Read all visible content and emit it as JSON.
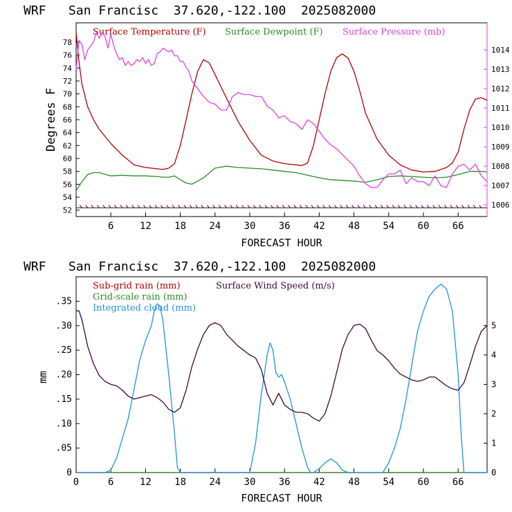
{
  "colors": {
    "temperature": "#b00000",
    "dewpoint": "#2a8a2a",
    "pressure": "#e040e0",
    "subgrid_rain": "#b00000",
    "grid_rain": "#2a8a2a",
    "cloud": "#2090e0",
    "wind": "#3a0838",
    "axis": "#000000"
  },
  "chart_data": [
    {
      "type": "line",
      "title": "WRF   San Francisc  37.620,-122.100  2025082000",
      "xlabel": "FORECAST HOUR",
      "ylabel": "Degrees F",
      "xlim": [
        0,
        71
      ],
      "ylim": [
        51,
        81
      ],
      "y2lim": [
        1005.4,
        1015.4
      ],
      "x_ticks": [
        6,
        12,
        18,
        24,
        30,
        36,
        42,
        48,
        54,
        60,
        66
      ],
      "x_tick_labels": [
        "6",
        "12",
        "18",
        "24",
        "30",
        "36",
        "42",
        "48",
        "54",
        "60",
        "66"
      ],
      "y_ticks": [
        52,
        54,
        56,
        58,
        60,
        62,
        64,
        66,
        68,
        70,
        72,
        74,
        76,
        78
      ],
      "y_tick_labels": [
        "52",
        "54",
        "56",
        "58",
        "60",
        "62",
        "64",
        "66",
        "68",
        "70",
        "72",
        "74",
        "76",
        "78"
      ],
      "y2_ticks": [
        1006,
        1007,
        1008,
        1009,
        1010,
        1011,
        1012,
        1013,
        1014
      ],
      "y2_tick_labels": [
        "1006",
        "1007",
        "1008",
        "1009",
        "1010",
        "1011",
        "1012",
        "1013",
        "1014"
      ],
      "legend": [
        "Surface Temperature (F)",
        "Surface Dewpoint (F)",
        "Surface Pressure (mb)"
      ],
      "series": [
        {
          "name": "Surface Temperature (F)",
          "axis": "left",
          "x": [
            0,
            0.5,
            1,
            2,
            3,
            4,
            6,
            8,
            10,
            12,
            14,
            15,
            16,
            17,
            18,
            19,
            20,
            21,
            22,
            23,
            24,
            26,
            28,
            30,
            32,
            34,
            36,
            38,
            39,
            40,
            41,
            42,
            43,
            44,
            45,
            46,
            47,
            48,
            49,
            50,
            52,
            54,
            56,
            58,
            60,
            62,
            64,
            65,
            66,
            67,
            68,
            69,
            70,
            71
          ],
          "values": [
            79.5,
            75,
            71.5,
            68,
            66,
            64.5,
            62.3,
            60.5,
            59,
            58.6,
            58.4,
            58.3,
            58.5,
            59.2,
            62,
            66,
            70,
            73.5,
            75.3,
            74.8,
            73,
            69.3,
            65.7,
            62.8,
            60.5,
            59.6,
            59.2,
            59,
            58.9,
            59.3,
            62,
            66,
            70,
            73.5,
            75.6,
            76.2,
            75.5,
            73.5,
            70.5,
            67,
            63,
            60.5,
            59,
            58.2,
            57.9,
            58,
            58.6,
            59.3,
            61,
            64.5,
            67.5,
            69.2,
            69.4,
            69
          ],
          "color": "#b00000"
        },
        {
          "name": "Surface Dewpoint (F)",
          "axis": "left",
          "x": [
            0,
            1,
            2,
            3,
            4,
            6,
            8,
            10,
            12,
            14,
            15,
            16,
            17,
            18,
            19,
            20,
            22,
            24,
            26,
            28,
            30,
            32,
            34,
            36,
            38,
            40,
            42,
            44,
            46,
            48,
            50,
            52,
            54,
            56,
            58,
            60,
            62,
            64,
            66,
            68,
            70,
            71
          ],
          "values": [
            55,
            56.4,
            57.5,
            57.8,
            57.8,
            57.3,
            57.4,
            57.3,
            57.3,
            57.2,
            57.1,
            57.1,
            57.3,
            56.7,
            56.2,
            56,
            57,
            58.5,
            58.8,
            58.6,
            58.5,
            58.4,
            58.2,
            58,
            57.8,
            57.4,
            57,
            56.7,
            56.6,
            56.5,
            56.3,
            56.7,
            57.2,
            57.3,
            57.2,
            57.1,
            57,
            57.1,
            57.5,
            58,
            58,
            57.9
          ],
          "color": "#2a8a2a"
        },
        {
          "name": "Surface Pressure (mb)",
          "axis": "right",
          "x": [
            0,
            0.5,
            1,
            1.5,
            2,
            3,
            3.5,
            4,
            4.5,
            5,
            5.5,
            6,
            6.5,
            7,
            7.5,
            8,
            8.5,
            9,
            9.5,
            10,
            10.5,
            11,
            11.5,
            12,
            12.5,
            13,
            13.5,
            14,
            14.5,
            15,
            16,
            16.5,
            17,
            17.5,
            18,
            18.5,
            19,
            19.5,
            20,
            21,
            22,
            23,
            24,
            25,
            26,
            27,
            28,
            29,
            30,
            31,
            32,
            33,
            34,
            35,
            36,
            37,
            38,
            39,
            40,
            41,
            42,
            43,
            44,
            45,
            46,
            47,
            48,
            49,
            50,
            51,
            52,
            53,
            54,
            55,
            56,
            57,
            58,
            59,
            60,
            61,
            62,
            63,
            64,
            65,
            66,
            67,
            68,
            69,
            70,
            71
          ],
          "values": [
            1013,
            1014.5,
            1014.3,
            1013.5,
            1014,
            1014.4,
            1014.9,
            1014.6,
            1014.9,
            1014.7,
            1014.1,
            1014.8,
            1014.2,
            1013.8,
            1013.5,
            1013.6,
            1013.2,
            1013.4,
            1013.2,
            1013.3,
            1013.5,
            1013.4,
            1013.6,
            1013.3,
            1013.5,
            1013.2,
            1013.3,
            1013.8,
            1013.9,
            1014.1,
            1013.9,
            1014,
            1013.7,
            1013.7,
            1013.4,
            1013.4,
            1013.1,
            1012.9,
            1012.4,
            1012,
            1011.6,
            1011.3,
            1011.2,
            1010.9,
            1010.9,
            1011.6,
            1011.8,
            1011.7,
            1011.7,
            1011.6,
            1011.6,
            1011.1,
            1010.9,
            1010.5,
            1010.6,
            1010.3,
            1010.2,
            1009.9,
            1010.4,
            1010.2,
            1009.8,
            1009.4,
            1009.1,
            1008.9,
            1008.6,
            1008.3,
            1008,
            1007.5,
            1007.1,
            1006.9,
            1006.9,
            1007.3,
            1007.6,
            1007.6,
            1007.8,
            1007.1,
            1007.4,
            1007.2,
            1007.2,
            1007,
            1007.5,
            1007,
            1006.9,
            1007.6,
            1008,
            1008.1,
            1007.8,
            1008.1,
            1007.5,
            1007.2
          ],
          "color": "#e040e0"
        }
      ]
    },
    {
      "type": "line",
      "title": "WRF   San Francisc  37.620,-122.100  2025082000",
      "xlabel": "FORECAST HOUR",
      "ylabel": "mm",
      "xlim": [
        0,
        71
      ],
      "ylim": [
        0,
        0.4
      ],
      "y2lim": [
        0,
        6.66
      ],
      "x_ticks": [
        0,
        6,
        12,
        18,
        24,
        30,
        36,
        42,
        48,
        54,
        60,
        66
      ],
      "x_tick_labels": [
        "0",
        "6",
        "12",
        "18",
        "24",
        "30",
        "36",
        "42",
        "48",
        "54",
        "60",
        "66"
      ],
      "y_ticks": [
        0,
        0.05,
        0.1,
        0.15,
        0.2,
        0.25,
        0.3,
        0.35
      ],
      "y_tick_labels": [
        "0",
        ".05",
        ".10",
        ".15",
        ".20",
        ".25",
        ".30",
        ".35"
      ],
      "y2_ticks": [
        0,
        1,
        2,
        3,
        4,
        5
      ],
      "y2_tick_labels": [
        "0",
        "1",
        "2",
        "3",
        "4",
        "5"
      ],
      "legend": [
        "Sub-grid rain (mm)",
        "Surface Wind Speed (m/s)",
        "Grid-scale rain (mm)",
        "Integrated cloud (mm)"
      ],
      "series": [
        {
          "name": "Sub-grid rain (mm)",
          "axis": "left",
          "x": [
            0,
            71
          ],
          "values": [
            0,
            0
          ],
          "color": "#b00000"
        },
        {
          "name": "Grid-scale rain (mm)",
          "axis": "left",
          "x": [
            0,
            71
          ],
          "values": [
            0,
            0
          ],
          "color": "#2a8a2a"
        },
        {
          "name": "Integrated cloud (mm)",
          "axis": "left",
          "x": [
            0,
            5,
            6,
            7,
            8,
            9,
            10,
            11,
            12,
            13,
            13.5,
            14,
            14.5,
            15,
            16,
            17,
            17.5,
            18,
            30,
            31,
            32,
            33,
            33.5,
            34,
            34.5,
            35,
            35.5,
            36,
            37,
            38,
            39,
            40,
            40.5,
            41,
            42,
            43,
            44,
            45,
            46,
            47,
            53,
            54,
            55,
            56,
            57,
            58,
            59,
            60,
            61,
            62,
            63,
            64,
            65,
            66,
            66.5,
            67,
            71
          ],
          "values": [
            0,
            0,
            0.005,
            0.03,
            0.07,
            0.11,
            0.17,
            0.23,
            0.27,
            0.3,
            0.33,
            0.345,
            0.34,
            0.31,
            0.2,
            0.08,
            0.01,
            0,
            0,
            0.06,
            0.16,
            0.24,
            0.265,
            0.25,
            0.205,
            0.195,
            0.2,
            0.185,
            0.15,
            0.1,
            0.05,
            0.01,
            0,
            0,
            0.008,
            0.02,
            0.028,
            0.02,
            0.005,
            0,
            0,
            0.02,
            0.05,
            0.09,
            0.15,
            0.22,
            0.29,
            0.33,
            0.36,
            0.375,
            0.385,
            0.375,
            0.33,
            0.2,
            0.08,
            0,
            0
          ],
          "color": "#2090e0"
        },
        {
          "name": "Surface Wind Speed (m/s)",
          "axis": "right",
          "x": [
            0,
            0.5,
            1,
            2,
            3,
            4,
            5,
            6,
            7,
            8,
            9,
            10,
            11,
            12,
            13,
            14,
            15,
            16,
            17,
            18,
            19,
            20,
            21,
            22,
            23,
            24,
            25,
            26,
            27,
            28,
            29,
            30,
            31,
            32,
            33,
            34,
            35,
            36,
            37,
            38,
            39,
            40,
            41,
            42,
            43,
            44,
            45,
            46,
            47,
            48,
            49,
            50,
            51,
            52,
            53,
            54,
            55,
            56,
            57,
            58,
            59,
            60,
            61,
            62,
            63,
            64,
            65,
            66,
            67,
            68,
            69,
            70,
            71
          ],
          "values": [
            5.5,
            5.5,
            5.2,
            4.3,
            3.7,
            3.3,
            3.1,
            3,
            2.95,
            2.8,
            2.6,
            2.5,
            2.55,
            2.6,
            2.65,
            2.55,
            2.4,
            2.15,
            2.05,
            2.2,
            2.8,
            3.6,
            4.2,
            4.7,
            5,
            5.1,
            5,
            4.7,
            4.5,
            4.3,
            4.15,
            4,
            3.9,
            3.5,
            2.7,
            2.3,
            2.7,
            2.3,
            2.15,
            2.05,
            2.05,
            2,
            1.85,
            1.75,
            2,
            2.6,
            3.4,
            4.2,
            4.7,
            5,
            5.05,
            4.9,
            4.5,
            4.15,
            4,
            3.8,
            3.55,
            3.35,
            3.25,
            3.15,
            3.1,
            3.15,
            3.25,
            3.25,
            3.1,
            2.95,
            2.85,
            2.8,
            3.05,
            3.65,
            4.3,
            4.8,
            5
          ]
        }
      ]
    }
  ]
}
